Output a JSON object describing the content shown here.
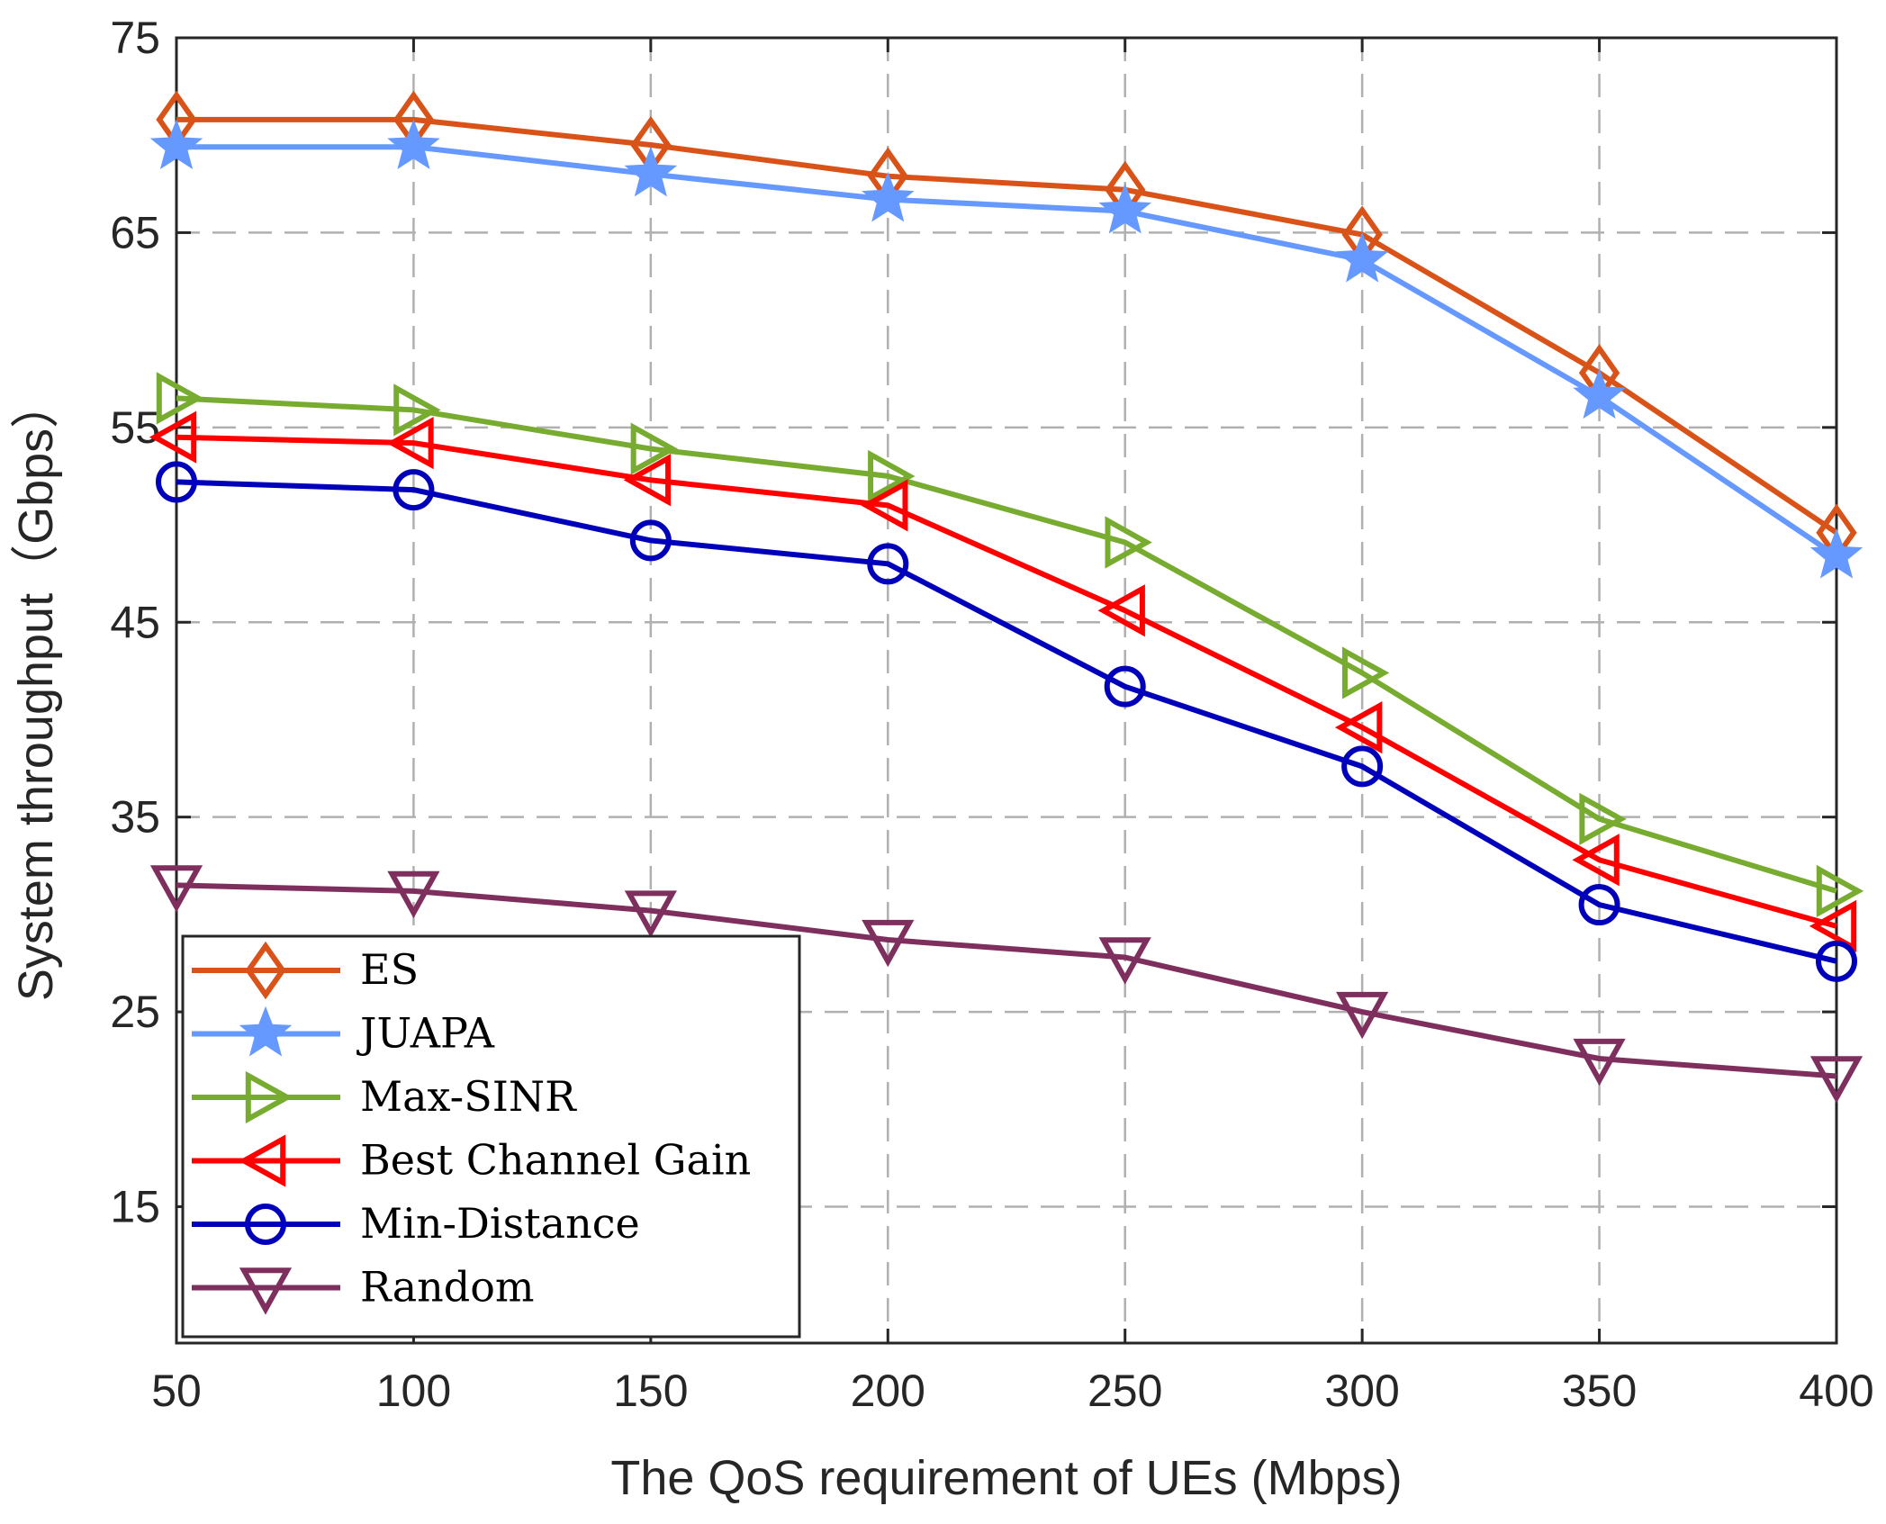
{
  "chart_data": {
    "type": "line",
    "title": "",
    "xlabel": "The QoS requirement of UEs (Mbps)",
    "ylabel": "System throughput（Gbps）",
    "x": [
      50,
      100,
      150,
      200,
      250,
      300,
      350,
      400
    ],
    "xlim": [
      50,
      400
    ],
    "ylim": [
      8,
      75
    ],
    "xticks": [
      "50",
      "100",
      "150",
      "200",
      "250",
      "300",
      "350",
      "400"
    ],
    "yticks": [
      "15",
      "25",
      "35",
      "45",
      "55",
      "65",
      "75"
    ],
    "grid": true,
    "legend_position": "bottom-left",
    "series": [
      {
        "name": "ES",
        "marker": "diamond",
        "color": "#D95319",
        "values": [
          70.8,
          70.8,
          69.5,
          67.9,
          67.2,
          64.9,
          57.8,
          49.6
        ]
      },
      {
        "name": "JUAPA",
        "marker": "star",
        "color": "#6699FF",
        "values": [
          69.4,
          69.4,
          68.0,
          66.7,
          66.1,
          63.6,
          56.6,
          48.4
        ]
      },
      {
        "name": "Max-SINR",
        "marker": "triangle-right",
        "color": "#77AC30",
        "values": [
          56.5,
          55.9,
          53.9,
          52.5,
          49.1,
          42.4,
          34.9,
          31.2
        ]
      },
      {
        "name": "Best Channel Gain",
        "marker": "triangle-left",
        "color": "#FF0000",
        "values": [
          54.5,
          54.2,
          52.3,
          51.0,
          45.6,
          39.6,
          32.8,
          29.4
        ]
      },
      {
        "name": "Min-Distance",
        "marker": "circle",
        "color": "#0000BB",
        "values": [
          52.2,
          51.8,
          49.2,
          48.0,
          41.7,
          37.6,
          30.5,
          27.6
        ]
      },
      {
        "name": "Random",
        "marker": "triangle-down",
        "color": "#7E2F5E",
        "values": [
          31.5,
          31.2,
          30.2,
          28.7,
          27.8,
          25.0,
          22.6,
          21.7
        ]
      }
    ]
  }
}
